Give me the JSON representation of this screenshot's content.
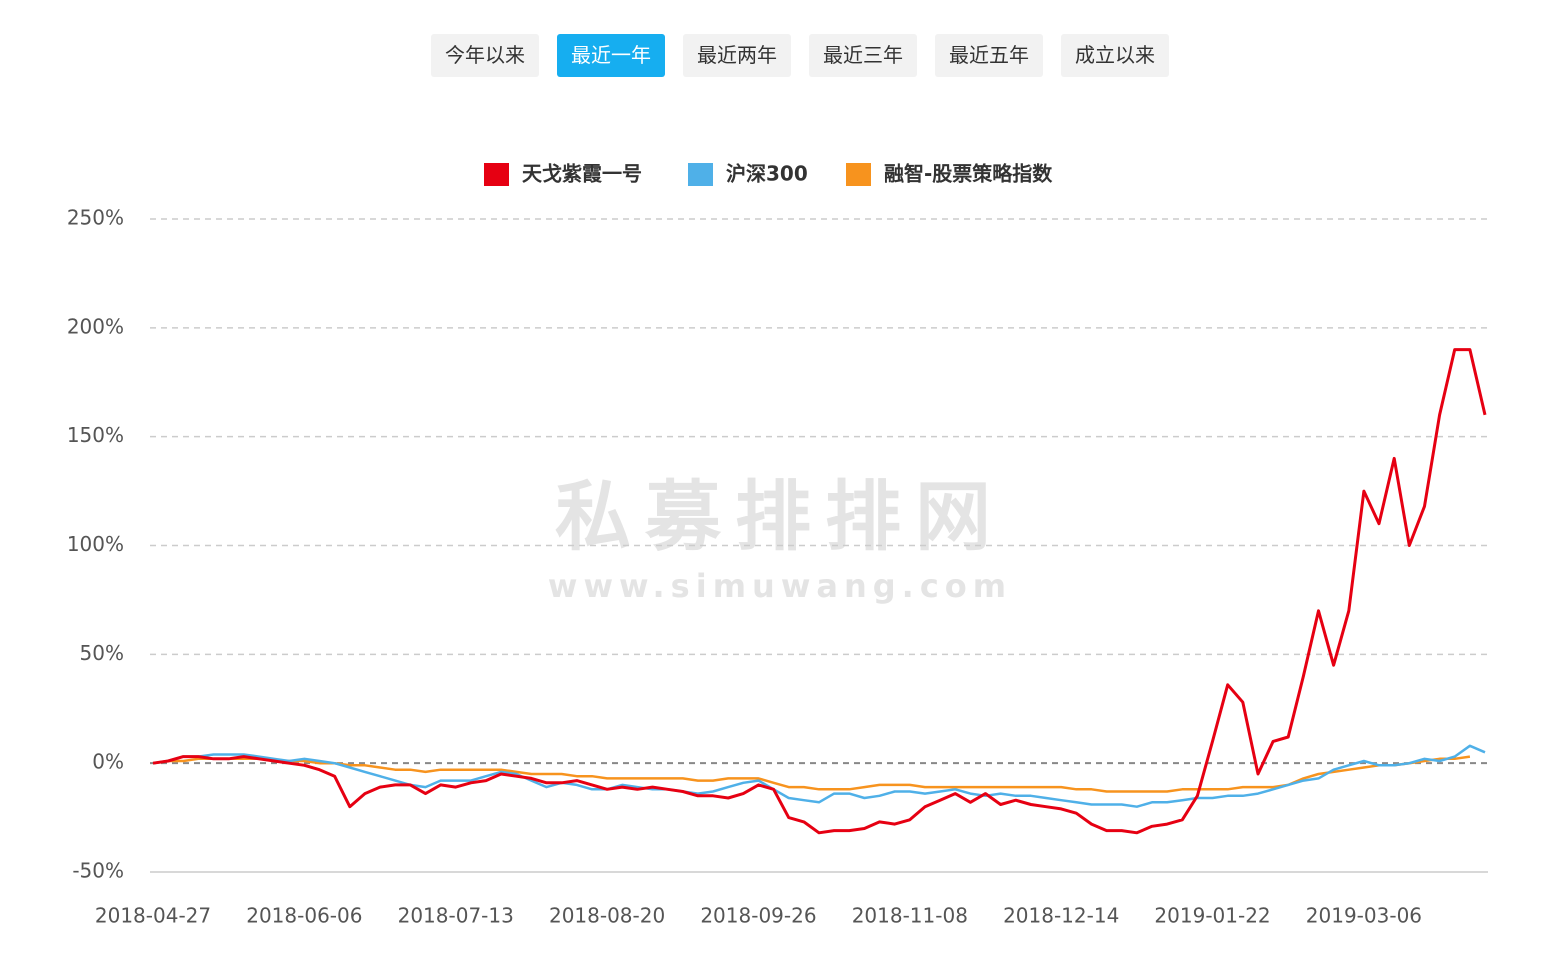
{
  "tabs": {
    "items": [
      "今年以来",
      "最近一年",
      "最近两年",
      "最近三年",
      "最近五年",
      "成立以来"
    ],
    "selected": 1
  },
  "watermark": {
    "title": "私募排排网",
    "url": "www.simuwang.com"
  },
  "chart_data": {
    "type": "line",
    "categories": [
      "2018-04-27",
      null,
      null,
      null,
      null,
      null,
      null,
      null,
      null,
      null,
      "2018-06-06",
      null,
      null,
      null,
      null,
      null,
      null,
      null,
      null,
      null,
      "2018-07-13",
      null,
      null,
      null,
      null,
      null,
      null,
      null,
      null,
      null,
      "2018-08-20",
      null,
      null,
      null,
      null,
      null,
      null,
      null,
      null,
      null,
      "2018-09-26",
      null,
      null,
      null,
      null,
      null,
      null,
      null,
      null,
      null,
      "2018-11-08",
      null,
      null,
      null,
      null,
      null,
      null,
      null,
      null,
      null,
      "2018-12-14",
      null,
      null,
      null,
      null,
      null,
      null,
      null,
      null,
      null,
      "2019-01-22",
      null,
      null,
      null,
      null,
      null,
      null,
      null,
      null,
      null,
      "2019-03-06",
      null,
      null,
      null,
      null,
      null,
      null,
      null,
      null
    ],
    "series": [
      {
        "name": "天戈紫霞一号",
        "color": "#e60012",
        "values": [
          0,
          1,
          3,
          3,
          2,
          2,
          3,
          2,
          1,
          0,
          -1,
          -3,
          -6,
          -20,
          -14,
          -11,
          -10,
          -10,
          -14,
          -10,
          -11,
          -9,
          -8,
          -5,
          -6,
          -7,
          -9,
          -9,
          -8,
          -10,
          -12,
          -11,
          -12,
          -11,
          -12,
          -13,
          -15,
          -15,
          -16,
          -14,
          -10,
          -12,
          -25,
          -27,
          -32,
          -31,
          -31,
          -30,
          -27,
          -28,
          -26,
          -20,
          -17,
          -14,
          -18,
          -14,
          -19,
          -17,
          -19,
          -20,
          -21,
          -23,
          -28,
          -31,
          -31,
          -32,
          -29,
          -28,
          -26,
          -15,
          10,
          36,
          28,
          -5,
          10,
          12,
          40,
          70,
          45,
          70,
          125,
          110,
          140,
          100,
          118,
          160,
          190,
          190,
          160
        ]
      },
      {
        "name": "沪深300",
        "color": "#4fb0e8",
        "values": [
          0,
          1,
          3,
          3,
          4,
          4,
          4,
          3,
          2,
          1,
          2,
          1,
          0,
          -2,
          -4,
          -6,
          -8,
          -10,
          -11,
          -8,
          -8,
          -8,
          -6,
          -4,
          -5,
          -8,
          -11,
          -9,
          -10,
          -12,
          -12,
          -10,
          -11,
          -12,
          -12,
          -13,
          -14,
          -13,
          -11,
          -9,
          -8,
          -12,
          -16,
          -17,
          -18,
          -14,
          -14,
          -16,
          -15,
          -13,
          -13,
          -14,
          -13,
          -12,
          -14,
          -15,
          -14,
          -15,
          -15,
          -16,
          -17,
          -18,
          -19,
          -19,
          -19,
          -20,
          -18,
          -18,
          -17,
          -16,
          -16,
          -15,
          -15,
          -14,
          -12,
          -10,
          -8,
          -7,
          -3,
          -1,
          1,
          -1,
          -1,
          0,
          2,
          1,
          3,
          8,
          5
        ]
      },
      {
        "name": "融智-股票策略指数",
        "color": "#f7931e",
        "values": [
          0,
          1,
          1,
          2,
          2,
          2,
          2,
          2,
          1,
          1,
          1,
          0,
          0,
          -1,
          -1,
          -2,
          -3,
          -3,
          -4,
          -3,
          -3,
          -3,
          -3,
          -3,
          -4,
          -5,
          -5,
          -5,
          -6,
          -6,
          -7,
          -7,
          -7,
          -7,
          -7,
          -7,
          -8,
          -8,
          -7,
          -7,
          -7,
          -9,
          -11,
          -11,
          -12,
          -12,
          -12,
          -11,
          -10,
          -10,
          -10,
          -11,
          -11,
          -11,
          -11,
          -11,
          -11,
          -11,
          -11,
          -11,
          -11,
          -12,
          -12,
          -13,
          -13,
          -13,
          -13,
          -13,
          -12,
          -12,
          -12,
          -12,
          -11,
          -11,
          -11,
          -10,
          -7,
          -5,
          -4,
          -3,
          -2,
          -1,
          -1,
          0,
          1,
          2,
          2,
          3,
          null
        ]
      }
    ],
    "ylim": [
      -50,
      250
    ],
    "yticks": [
      {
        "value": -50,
        "label": "-50%"
      },
      {
        "value": 0,
        "label": "0%"
      },
      {
        "value": 50,
        "label": "50%"
      },
      {
        "value": 100,
        "label": "100%"
      },
      {
        "value": 150,
        "label": "150%"
      },
      {
        "value": 200,
        "label": "200%"
      },
      {
        "value": 250,
        "label": "250%"
      }
    ],
    "grid": true,
    "legend": "top"
  }
}
